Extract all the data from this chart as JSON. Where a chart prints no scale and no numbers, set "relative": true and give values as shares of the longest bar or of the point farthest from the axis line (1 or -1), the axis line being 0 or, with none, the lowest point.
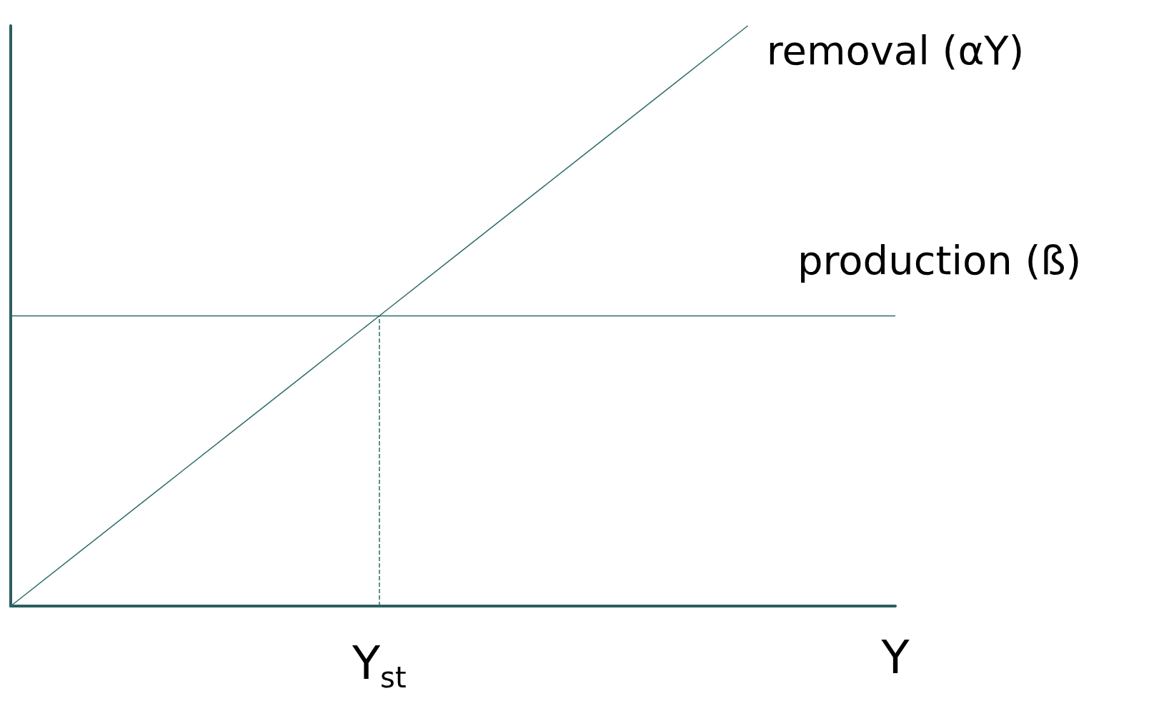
{
  "chart_data": {
    "type": "line",
    "relative": true,
    "categories": [
      null,
      null,
      null,
      null,
      null,
      "Y$_{st}$",
      null,
      null,
      null,
      null,
      null,
      null,
      "Y"
    ],
    "series": [
      {
        "name": "removal (αY)",
        "color": "#2f6b6b",
        "values": [
          0,
          0.1,
          0.2,
          0.3,
          0.4,
          0.5,
          0.6,
          0.7,
          0.8,
          0.9,
          1,
          null,
          null
        ]
      },
      {
        "name": "production (ß)",
        "color": "#2f6b6b",
        "values": [
          0.5,
          0.5,
          0.5,
          0.5,
          0.5,
          0.5,
          0.5,
          0.5,
          0.5,
          0.5,
          0.5,
          0.5,
          0.5
        ]
      }
    ],
    "ref_lines": [
      {
        "axis": "x",
        "value": "Y$_{st}$",
        "line_style": "dashed",
        "color": "#2f6b6b"
      }
    ],
    "legend": false,
    "grid": false,
    "marker": "none"
  }
}
